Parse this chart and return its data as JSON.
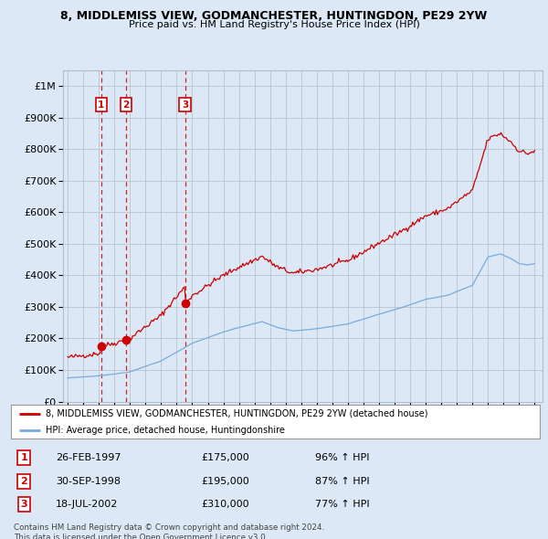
{
  "title": "8, MIDDLEMISS VIEW, GODMANCHESTER, HUNTINGDON, PE29 2YW",
  "subtitle": "Price paid vs. HM Land Registry's House Price Index (HPI)",
  "legend_line1": "8, MIDDLEMISS VIEW, GODMANCHESTER, HUNTINGDON, PE29 2YW (detached house)",
  "legend_line2": "HPI: Average price, detached house, Huntingdonshire",
  "footnote": "Contains HM Land Registry data © Crown copyright and database right 2024.\nThis data is licensed under the Open Government Licence v3.0.",
  "sales": [
    {
      "num": 1,
      "date_label": "26-FEB-1997",
      "price": 175000,
      "pct": "96%",
      "year": 1997.15
    },
    {
      "num": 2,
      "date_label": "30-SEP-1998",
      "price": 195000,
      "pct": "87%",
      "year": 1998.75
    },
    {
      "num": 3,
      "date_label": "18-JUL-2002",
      "price": 310000,
      "pct": "77%",
      "year": 2002.54
    }
  ],
  "red_line_color": "#cc0000",
  "blue_line_color": "#7aaadd",
  "plot_bg_color": "#dce8f5",
  "fig_bg_color": "#dce8f5",
  "grid_color": "#b0bec8",
  "ylim": [
    0,
    1050000
  ],
  "xlim_start": 1994.7,
  "xlim_end": 2025.5
}
